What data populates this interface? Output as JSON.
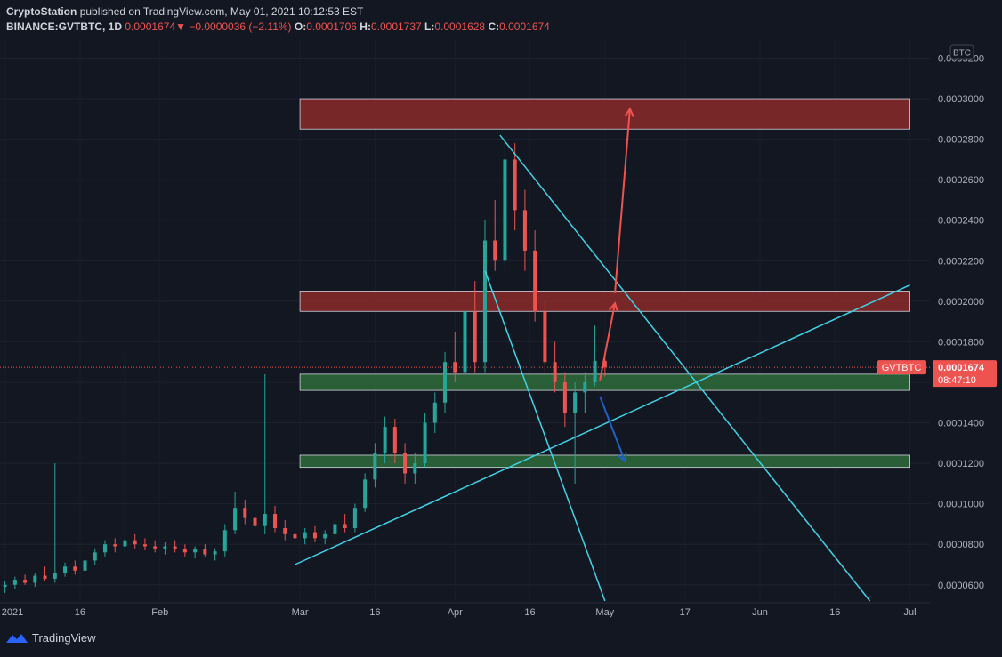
{
  "header": {
    "author": "CryptoStation",
    "published_text": "published on TradingView.com, May 01, 2021 10:12:53 EST",
    "symbol_line": "BINANCE:GVTBTC, 1D",
    "last": "0.0001674",
    "change": "−0.0000036 (−2.11%)",
    "o_label": "O:",
    "o": "0.0001706",
    "h_label": "H:",
    "h": "0.0001737",
    "l_label": "L:",
    "l": "0.0001628",
    "c_label": "C:",
    "c": "0.0001674"
  },
  "currency_badge": "BTC",
  "price_tag": {
    "symbol": "GVTBTC",
    "price": "0.0001674",
    "countdown": "08:47:10"
  },
  "footer": {
    "brand": "TradingView"
  },
  "colors": {
    "background": "#131722",
    "up": "#26a69a",
    "down": "#ef5350",
    "resistance_zone": "#8b2a2a",
    "support_zone": "#2e6b3a",
    "trendline": "#3fd3e6",
    "projection_up": "#ef5350",
    "projection_down": "#1e62c8"
  },
  "chart_data": {
    "type": "candlestick",
    "x_ticks": [
      "2021",
      "16",
      "Feb",
      "Mar",
      "16",
      "Apr",
      "16",
      "May",
      "17",
      "Jun",
      "16",
      "Jul"
    ],
    "y_ticks": [
      "0.0000600",
      "0.0000800",
      "0.0001000",
      "0.0001200",
      "0.0001400",
      "0.0001600",
      "0.0001800",
      "0.0002000",
      "0.0002200",
      "0.0002400",
      "0.0002600",
      "0.0002800",
      "0.0003000",
      "0.0003200"
    ],
    "ylim": [
      5.2e-05,
      0.000329
    ],
    "y_scale": "linear",
    "zones": [
      {
        "kind": "resistance",
        "from": 0.000285,
        "to": 0.0003
      },
      {
        "kind": "resistance",
        "from": 0.000195,
        "to": 0.000205
      },
      {
        "kind": "support",
        "from": 0.000156,
        "to": 0.000164
      },
      {
        "kind": "support",
        "from": 0.000118,
        "to": 0.000124
      }
    ],
    "trendlines": [
      {
        "from": [
          "2021-02-28",
          7e-05
        ],
        "to": [
          "2021-07-01",
          0.000208
        ]
      },
      {
        "from": [
          "2021-04-10",
          0.000282
        ],
        "to": [
          "2021-06-23",
          5.2e-05
        ]
      },
      {
        "from": [
          "2021-04-07",
          0.000215
        ],
        "to": [
          "2021-05-01",
          5.2e-05
        ]
      }
    ],
    "projections": [
      {
        "direction": "up",
        "points": [
          [
            "2021-04-30",
            0.000161
          ],
          [
            "2021-05-03",
            0.000199
          ]
        ]
      },
      {
        "direction": "up",
        "points": [
          [
            "2021-05-03",
            0.000204
          ],
          [
            "2021-05-06",
            0.000295
          ]
        ]
      },
      {
        "direction": "down",
        "points": [
          [
            "2021-04-30",
            0.000153
          ],
          [
            "2021-05-05",
            0.000121
          ]
        ]
      }
    ],
    "candles": [
      {
        "d": "2021-01-01",
        "o": 5.9e-05,
        "h": 6.2e-05,
        "l": 5.6e-05,
        "c": 6e-05
      },
      {
        "d": "2021-01-03",
        "o": 6e-05,
        "h": 6.4e-05,
        "l": 5.8e-05,
        "c": 6.25e-05
      },
      {
        "d": "2021-01-05",
        "o": 6.25e-05,
        "h": 6.5e-05,
        "l": 6e-05,
        "c": 6.1e-05
      },
      {
        "d": "2021-01-07",
        "o": 6.1e-05,
        "h": 6.6e-05,
        "l": 5.9e-05,
        "c": 6.45e-05
      },
      {
        "d": "2021-01-09",
        "o": 6.45e-05,
        "h": 6.9e-05,
        "l": 6.2e-05,
        "c": 6.3e-05
      },
      {
        "d": "2021-01-11",
        "o": 6.3e-05,
        "h": 0.00012,
        "l": 6.1e-05,
        "c": 6.6e-05
      },
      {
        "d": "2021-01-13",
        "o": 6.6e-05,
        "h": 7.1e-05,
        "l": 6.4e-05,
        "c": 6.9e-05
      },
      {
        "d": "2021-01-15",
        "o": 6.9e-05,
        "h": 7.2e-05,
        "l": 6.5e-05,
        "c": 6.7e-05
      },
      {
        "d": "2021-01-17",
        "o": 6.7e-05,
        "h": 7.4e-05,
        "l": 6.5e-05,
        "c": 7.2e-05
      },
      {
        "d": "2021-01-19",
        "o": 7.2e-05,
        "h": 7.8e-05,
        "l": 7e-05,
        "c": 7.6e-05
      },
      {
        "d": "2021-01-21",
        "o": 7.6e-05,
        "h": 8.2e-05,
        "l": 7.4e-05,
        "c": 8e-05
      },
      {
        "d": "2021-01-23",
        "o": 8e-05,
        "h": 8.3e-05,
        "l": 7.6e-05,
        "c": 7.9e-05
      },
      {
        "d": "2021-01-25",
        "o": 7.9e-05,
        "h": 0.000175,
        "l": 7.6e-05,
        "c": 8.2e-05
      },
      {
        "d": "2021-01-27",
        "o": 8.2e-05,
        "h": 8.5e-05,
        "l": 7.8e-05,
        "c": 8e-05
      },
      {
        "d": "2021-01-29",
        "o": 8e-05,
        "h": 8.3e-05,
        "l": 7.7e-05,
        "c": 7.9e-05
      },
      {
        "d": "2021-01-31",
        "o": 7.9e-05,
        "h": 8.2e-05,
        "l": 7.6e-05,
        "c": 7.8e-05
      },
      {
        "d": "2021-02-02",
        "o": 7.8e-05,
        "h": 8.1e-05,
        "l": 7.5e-05,
        "c": 7.9e-05
      },
      {
        "d": "2021-02-04",
        "o": 7.9e-05,
        "h": 8.2e-05,
        "l": 7.6e-05,
        "c": 7.75e-05
      },
      {
        "d": "2021-02-06",
        "o": 7.75e-05,
        "h": 8e-05,
        "l": 7.4e-05,
        "c": 7.6e-05
      },
      {
        "d": "2021-02-08",
        "o": 7.6e-05,
        "h": 7.9e-05,
        "l": 7.3e-05,
        "c": 7.75e-05
      },
      {
        "d": "2021-02-10",
        "o": 7.75e-05,
        "h": 8e-05,
        "l": 7.4e-05,
        "c": 7.5e-05
      },
      {
        "d": "2021-02-12",
        "o": 7.5e-05,
        "h": 7.8e-05,
        "l": 7.2e-05,
        "c": 7.65e-05
      },
      {
        "d": "2021-02-14",
        "o": 7.65e-05,
        "h": 9e-05,
        "l": 7.4e-05,
        "c": 8.7e-05
      },
      {
        "d": "2021-02-16",
        "o": 8.7e-05,
        "h": 0.000106,
        "l": 8.5e-05,
        "c": 9.8e-05
      },
      {
        "d": "2021-02-18",
        "o": 9.8e-05,
        "h": 0.000102,
        "l": 9e-05,
        "c": 9.3e-05
      },
      {
        "d": "2021-02-20",
        "o": 9.3e-05,
        "h": 9.7e-05,
        "l": 8.7e-05,
        "c": 8.9e-05
      },
      {
        "d": "2021-02-22",
        "o": 8.9e-05,
        "h": 0.000164,
        "l": 8.5e-05,
        "c": 9.5e-05
      },
      {
        "d": "2021-02-24",
        "o": 9.5e-05,
        "h": 9.9e-05,
        "l": 8.6e-05,
        "c": 8.8e-05
      },
      {
        "d": "2021-02-26",
        "o": 8.8e-05,
        "h": 9.2e-05,
        "l": 8.2e-05,
        "c": 8.5e-05
      },
      {
        "d": "2021-02-28",
        "o": 8.5e-05,
        "h": 8.8e-05,
        "l": 8e-05,
        "c": 8.3e-05
      },
      {
        "d": "2021-03-02",
        "o": 8.3e-05,
        "h": 8.8e-05,
        "l": 8e-05,
        "c": 8.6e-05
      },
      {
        "d": "2021-03-04",
        "o": 8.6e-05,
        "h": 8.9e-05,
        "l": 8.1e-05,
        "c": 8.3e-05
      },
      {
        "d": "2021-03-06",
        "o": 8.3e-05,
        "h": 8.7e-05,
        "l": 8e-05,
        "c": 8.5e-05
      },
      {
        "d": "2021-03-08",
        "o": 8.5e-05,
        "h": 9.2e-05,
        "l": 8.2e-05,
        "c": 9e-05
      },
      {
        "d": "2021-03-10",
        "o": 9e-05,
        "h": 9.5e-05,
        "l": 8.6e-05,
        "c": 8.8e-05
      },
      {
        "d": "2021-03-12",
        "o": 8.8e-05,
        "h": 0.0001,
        "l": 8.6e-05,
        "c": 9.8e-05
      },
      {
        "d": "2021-03-14",
        "o": 9.8e-05,
        "h": 0.000115,
        "l": 9.6e-05,
        "c": 0.000112
      },
      {
        "d": "2021-03-16",
        "o": 0.000112,
        "h": 0.00013,
        "l": 0.000108,
        "c": 0.000125
      },
      {
        "d": "2021-03-18",
        "o": 0.000125,
        "h": 0.000143,
        "l": 0.00012,
        "c": 0.000138
      },
      {
        "d": "2021-03-20",
        "o": 0.000138,
        "h": 0.000142,
        "l": 0.00012,
        "c": 0.000125
      },
      {
        "d": "2021-03-22",
        "o": 0.000125,
        "h": 0.00013,
        "l": 0.00011,
        "c": 0.000115
      },
      {
        "d": "2021-03-24",
        "o": 0.000115,
        "h": 0.000125,
        "l": 0.00011,
        "c": 0.00012
      },
      {
        "d": "2021-03-26",
        "o": 0.00012,
        "h": 0.000145,
        "l": 0.000118,
        "c": 0.00014
      },
      {
        "d": "2021-03-28",
        "o": 0.00014,
        "h": 0.000155,
        "l": 0.000135,
        "c": 0.00015
      },
      {
        "d": "2021-03-30",
        "o": 0.00015,
        "h": 0.000175,
        "l": 0.000145,
        "c": 0.00017
      },
      {
        "d": "2021-04-01",
        "o": 0.00017,
        "h": 0.000185,
        "l": 0.00016,
        "c": 0.000165
      },
      {
        "d": "2021-04-03",
        "o": 0.000165,
        "h": 0.000205,
        "l": 0.00016,
        "c": 0.000195
      },
      {
        "d": "2021-04-05",
        "o": 0.000195,
        "h": 0.00021,
        "l": 0.000165,
        "c": 0.00017
      },
      {
        "d": "2021-04-07",
        "o": 0.00017,
        "h": 0.00024,
        "l": 0.000165,
        "c": 0.00023
      },
      {
        "d": "2021-04-09",
        "o": 0.00023,
        "h": 0.00025,
        "l": 0.000215,
        "c": 0.00022
      },
      {
        "d": "2021-04-11",
        "o": 0.00022,
        "h": 0.000282,
        "l": 0.000215,
        "c": 0.00027
      },
      {
        "d": "2021-04-13",
        "o": 0.00027,
        "h": 0.000278,
        "l": 0.000235,
        "c": 0.000245
      },
      {
        "d": "2021-04-15",
        "o": 0.000245,
        "h": 0.000255,
        "l": 0.000215,
        "c": 0.000225
      },
      {
        "d": "2021-04-17",
        "o": 0.000225,
        "h": 0.000235,
        "l": 0.00019,
        "c": 0.000195
      },
      {
        "d": "2021-04-19",
        "o": 0.000195,
        "h": 0.0002,
        "l": 0.000165,
        "c": 0.00017
      },
      {
        "d": "2021-04-21",
        "o": 0.00017,
        "h": 0.00018,
        "l": 0.000155,
        "c": 0.00016
      },
      {
        "d": "2021-04-23",
        "o": 0.00016,
        "h": 0.000165,
        "l": 0.000138,
        "c": 0.000145
      },
      {
        "d": "2021-04-25",
        "o": 0.000145,
        "h": 0.00016,
        "l": 0.00011,
        "c": 0.000155
      },
      {
        "d": "2021-04-27",
        "o": 0.000155,
        "h": 0.000165,
        "l": 0.000145,
        "c": 0.00016
      },
      {
        "d": "2021-04-29",
        "o": 0.00016,
        "h": 0.000188,
        "l": 0.000158,
        "c": 0.0001706
      },
      {
        "d": "2021-05-01",
        "o": 0.0001706,
        "h": 0.0001737,
        "l": 0.0001628,
        "c": 0.0001674
      }
    ]
  }
}
